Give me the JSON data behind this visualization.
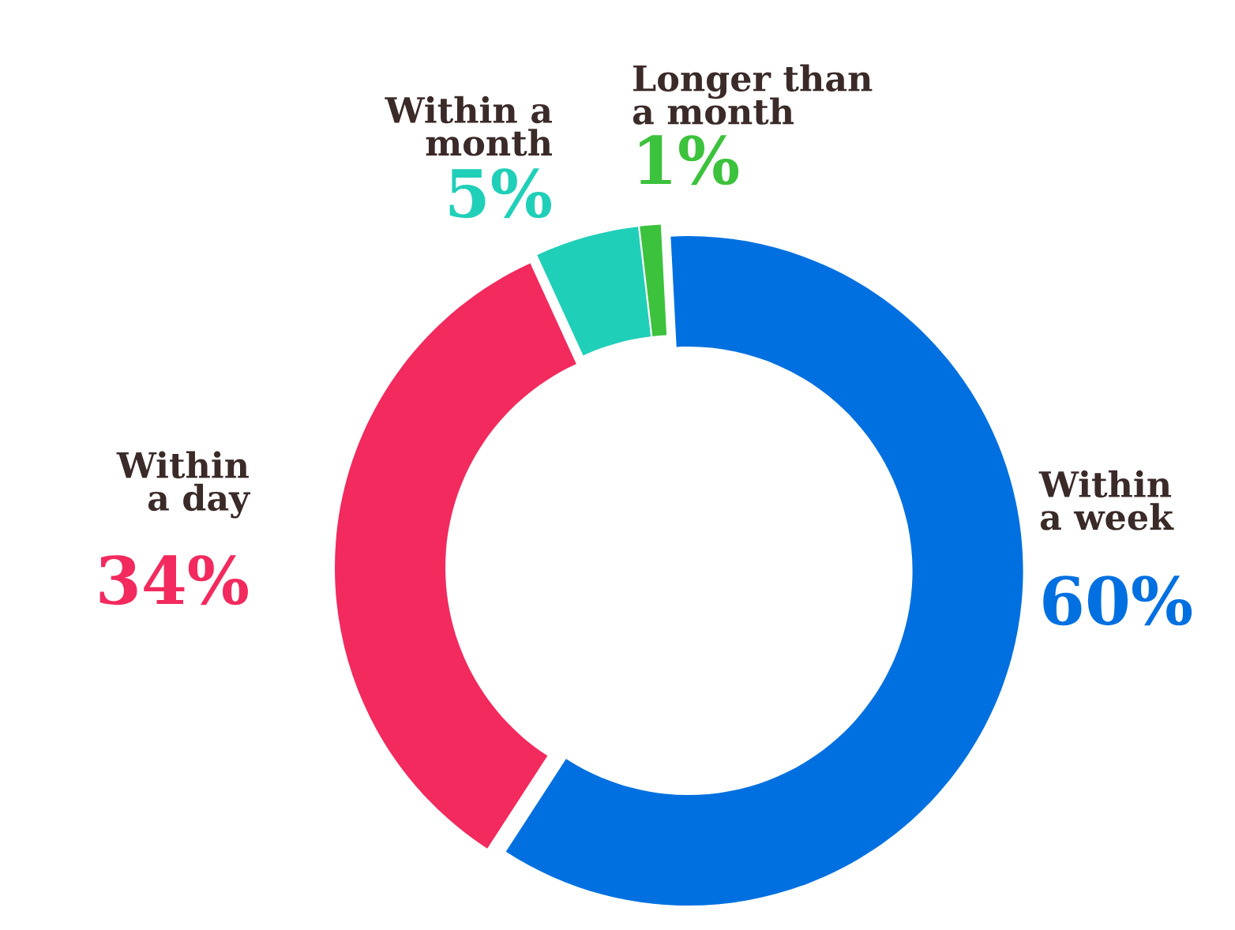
{
  "chart_data": {
    "type": "donut",
    "categories": [
      "Within\na week",
      "Within\na day",
      "Within a\nmonth",
      "Longer than\na month"
    ],
    "values": [
      60,
      34,
      5,
      1
    ],
    "colors": [
      "#0070e0",
      "#f22a5e",
      "#20cfb8",
      "#3cc23c"
    ],
    "value_labels": [
      "60%",
      "34%",
      "5%",
      "1%"
    ]
  }
}
